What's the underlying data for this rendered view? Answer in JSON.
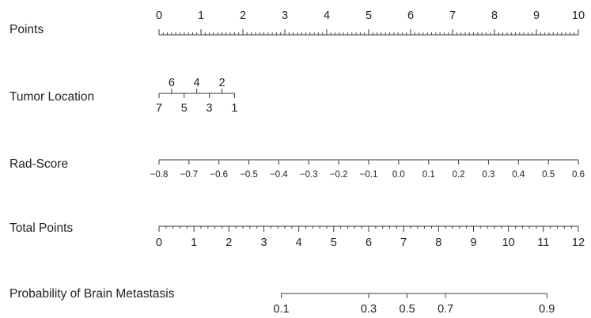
{
  "chart_data": {
    "type": "nomogram",
    "rows": [
      {
        "label": "Points",
        "labels_side": "above",
        "ticks": [
          {
            "value": 0,
            "label": "0"
          },
          {
            "value": 1,
            "label": "1"
          },
          {
            "value": 2,
            "label": "2"
          },
          {
            "value": 3,
            "label": "3"
          },
          {
            "value": 4,
            "label": "4"
          },
          {
            "value": 5,
            "label": "5"
          },
          {
            "value": 6,
            "label": "6"
          },
          {
            "value": 7,
            "label": "7"
          },
          {
            "value": 8,
            "label": "8"
          },
          {
            "value": 9,
            "label": "9"
          },
          {
            "value": 10,
            "label": "10"
          }
        ],
        "minor_step": 0.1,
        "points_range": [
          0,
          10
        ]
      },
      {
        "label": "Tumor Location",
        "labels_side": "both",
        "ticks": [
          {
            "value": 7,
            "label": "7",
            "points": 0.0,
            "side": "below"
          },
          {
            "value": 6,
            "label": "6",
            "points": 0.3,
            "side": "above"
          },
          {
            "value": 5,
            "label": "5",
            "points": 0.6,
            "side": "below"
          },
          {
            "value": 4,
            "label": "4",
            "points": 0.9,
            "side": "above"
          },
          {
            "value": 3,
            "label": "3",
            "points": 1.2,
            "side": "below"
          },
          {
            "value": 2,
            "label": "2",
            "points": 1.5,
            "side": "above"
          },
          {
            "value": 1,
            "label": "1",
            "points": 1.8,
            "side": "below"
          }
        ]
      },
      {
        "label": "Rad-Score",
        "labels_side": "below",
        "ticks": [
          {
            "value": -0.8,
            "label": "−0.8",
            "points": 0.0
          },
          {
            "value": -0.7,
            "label": "−0.7",
            "points": 0.714
          },
          {
            "value": -0.6,
            "label": "−0.6",
            "points": 1.429
          },
          {
            "value": -0.5,
            "label": "−0.5",
            "points": 2.143
          },
          {
            "value": -0.4,
            "label": "−0.4",
            "points": 2.857
          },
          {
            "value": -0.3,
            "label": "−0.3",
            "points": 3.571
          },
          {
            "value": -0.2,
            "label": "−0.2",
            "points": 4.286
          },
          {
            "value": -0.1,
            "label": "−0.1",
            "points": 5.0
          },
          {
            "value": 0.0,
            "label": "0.0",
            "points": 5.714
          },
          {
            "value": 0.1,
            "label": "0.1",
            "points": 6.429
          },
          {
            "value": 0.2,
            "label": "0.2",
            "points": 7.143
          },
          {
            "value": 0.3,
            "label": "0.3",
            "points": 7.857
          },
          {
            "value": 0.4,
            "label": "0.4",
            "points": 8.571
          },
          {
            "value": 0.5,
            "label": "0.5",
            "points": 9.286
          },
          {
            "value": 0.6,
            "label": "0.6",
            "points": 10.0
          }
        ]
      },
      {
        "label": "Total Points",
        "labels_side": "below",
        "ticks": [
          {
            "value": 0,
            "label": "0"
          },
          {
            "value": 1,
            "label": "1"
          },
          {
            "value": 2,
            "label": "2"
          },
          {
            "value": 3,
            "label": "3"
          },
          {
            "value": 4,
            "label": "4"
          },
          {
            "value": 5,
            "label": "5"
          },
          {
            "value": 6,
            "label": "6"
          },
          {
            "value": 7,
            "label": "7"
          },
          {
            "value": 8,
            "label": "8"
          },
          {
            "value": 9,
            "label": "9"
          },
          {
            "value": 10,
            "label": "10"
          },
          {
            "value": 11,
            "label": "11"
          },
          {
            "value": 12,
            "label": "12"
          }
        ],
        "minor_step": 0.2,
        "total_points_range": [
          0,
          12
        ]
      },
      {
        "label": "Probability of Brain Metastasis",
        "labels_side": "below",
        "ticks": [
          {
            "value": 0.1,
            "label": "0.1",
            "total_points": 3.5
          },
          {
            "value": 0.3,
            "label": "0.3",
            "total_points": 6.0
          },
          {
            "value": 0.5,
            "label": "0.5",
            "total_points": 7.1
          },
          {
            "value": 0.7,
            "label": "0.7",
            "total_points": 8.2
          },
          {
            "value": 0.9,
            "label": "0.9",
            "total_points": 11.1
          }
        ]
      }
    ]
  }
}
